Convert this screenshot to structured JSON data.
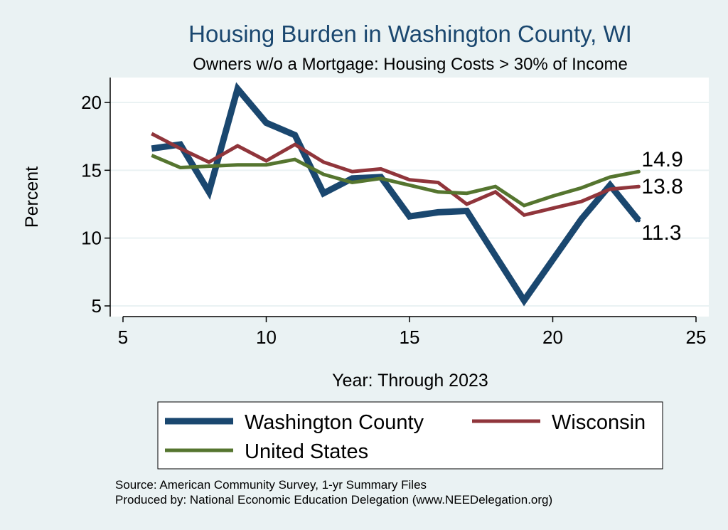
{
  "chart_data": {
    "type": "line",
    "title": "Housing Burden in Washington County, WI",
    "subtitle": "Owners w/o a Mortgage: Housing Costs > 30% of Income",
    "xlabel": "Year: Through 2023",
    "ylabel": "Percent",
    "xlim": [
      5,
      25
    ],
    "ylim": [
      4.5,
      22
    ],
    "xticks": [
      5,
      10,
      15,
      20,
      25
    ],
    "yticks": [
      5,
      10,
      15,
      20
    ],
    "grid": true,
    "x": [
      6,
      7,
      8,
      9,
      10,
      11,
      12,
      13,
      14,
      15,
      16,
      17,
      18,
      19,
      20,
      21,
      22,
      23
    ],
    "series": [
      {
        "name": "Washington County",
        "color": "#1a476f",
        "width": 9,
        "values": [
          16.6,
          16.9,
          13.4,
          21.0,
          18.5,
          17.6,
          13.3,
          14.4,
          14.5,
          11.6,
          11.9,
          12.0,
          8.7,
          5.4,
          8.4,
          11.4,
          13.9,
          11.3
        ],
        "end_label": "11.3"
      },
      {
        "name": "Wisconsin",
        "color": "#90353b",
        "width": 5,
        "values": [
          17.7,
          16.6,
          15.6,
          16.8,
          15.7,
          16.9,
          15.6,
          14.9,
          15.1,
          14.3,
          14.1,
          12.5,
          13.4,
          11.7,
          12.2,
          12.7,
          13.6,
          13.8
        ],
        "end_label": "13.8"
      },
      {
        "name": "United States",
        "color": "#55752f",
        "width": 5,
        "values": [
          16.1,
          15.2,
          15.3,
          15.4,
          15.4,
          15.8,
          14.7,
          14.1,
          14.4,
          13.9,
          13.4,
          13.3,
          13.8,
          12.4,
          13.1,
          13.7,
          14.5,
          14.9
        ],
        "end_label": "14.9"
      }
    ],
    "legend": {
      "placement": "bottom",
      "entries": [
        "Washington County",
        "Wisconsin",
        "United States"
      ]
    }
  },
  "source": {
    "line1": "Source: American Community Survey, 1-yr Summary Files",
    "line2": "Produced by: National Economic Education Delegation (www.NEEDelegation.org)"
  }
}
